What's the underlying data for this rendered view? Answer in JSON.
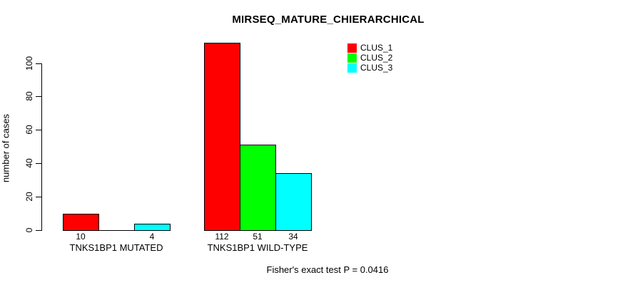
{
  "chart_data": {
    "type": "bar",
    "title": "MIRSEQ_MATURE_CHIERARCHICAL",
    "ylabel": "number of cases",
    "xlabel": "",
    "yticks": [
      0,
      20,
      40,
      60,
      80,
      100
    ],
    "ylim": [
      0,
      112
    ],
    "grid": false,
    "legend_position": "top-right",
    "categories": [
      "TNKS1BP1 MUTATED",
      "TNKS1BP1 WILD-TYPE"
    ],
    "series": [
      {
        "name": "CLUS_1",
        "color": "#ff0000",
        "values": [
          10,
          112
        ]
      },
      {
        "name": "CLUS_2",
        "color": "#00ff00",
        "values": [
          0,
          51
        ]
      },
      {
        "name": "CLUS_3",
        "color": "#00ffff",
        "values": [
          4,
          34
        ]
      }
    ],
    "bar_value_labels": {
      "TNKS1BP1 MUTATED": [
        "10",
        "4"
      ],
      "TNKS1BP1 WILD-TYPE": [
        "112",
        "51",
        "34"
      ]
    },
    "footnote": "Fisher's exact test P = 0.0416"
  }
}
